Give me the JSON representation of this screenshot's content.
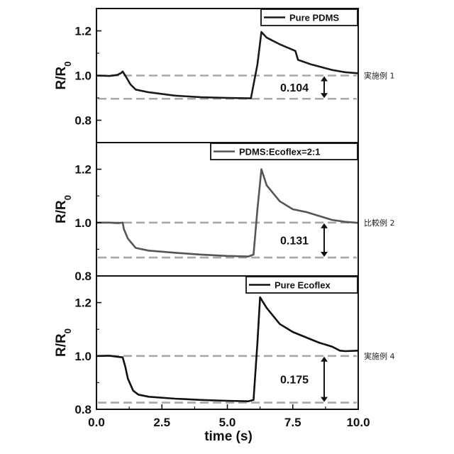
{
  "chart_data": {
    "type": "line",
    "xlabel": "time (s)",
    "xlim": [
      0,
      10
    ],
    "xticks": [
      "0.0",
      "2.5",
      "5.0",
      "7.5",
      "10.0"
    ],
    "panels": [
      {
        "id": "pure-pdms",
        "ylabel": "R/R",
        "ylabel_sub": "0",
        "ylim": [
          0.7,
          1.3
        ],
        "yticks": [
          "0.8",
          "1.0",
          "1.2"
        ],
        "legend": "Pure PDMS",
        "side_label": "実施例 1",
        "annotation": "0.104",
        "dashed_levels": [
          1.0,
          0.896
        ],
        "series": [
          {
            "color": "#1a1a1a",
            "x": [
              0,
              0.5,
              0.8,
              0.95,
              1.0,
              1.1,
              1.3,
              1.5,
              2.0,
              3.0,
              4.0,
              5.0,
              5.9,
              6.15,
              6.3,
              6.5,
              7.0,
              7.4,
              7.6,
              7.7,
              8.2,
              9.0,
              9.5,
              10.0
            ],
            "y": [
              1.0,
              0.998,
              1.003,
              1.012,
              1.018,
              1.0,
              0.96,
              0.937,
              0.925,
              0.91,
              0.903,
              0.9,
              0.898,
              1.05,
              1.195,
              1.17,
              1.14,
              1.12,
              1.11,
              1.07,
              1.05,
              1.025,
              1.015,
              1.01
            ]
          }
        ]
      },
      {
        "id": "pdms-ecoflex",
        "ylabel": "R/R",
        "ylabel_sub": "0",
        "ylim": [
          0.8,
          1.3
        ],
        "yticks": [
          "0.8",
          "1.0",
          "1.2"
        ],
        "legend": "PDMS:Ecoflex=2:1",
        "side_label": "比較例 2",
        "annotation": "0.131",
        "dashed_levels": [
          1.0,
          0.869
        ],
        "series": [
          {
            "color": "#555555",
            "x": [
              0,
              0.5,
              0.8,
              1.0,
              1.05,
              1.2,
              1.5,
              2.0,
              3.0,
              4.0,
              5.0,
              5.8,
              6.0,
              6.15,
              6.3,
              6.5,
              7.0,
              7.5,
              8.0,
              8.5,
              9.0,
              9.5,
              10.0
            ],
            "y": [
              1.0,
              1.0,
              0.998,
              1.0,
              0.975,
              0.94,
              0.905,
              0.895,
              0.887,
              0.88,
              0.875,
              0.873,
              0.88,
              1.05,
              1.2,
              1.14,
              1.08,
              1.05,
              1.04,
              1.025,
              1.01,
              1.003,
              0.999
            ]
          }
        ]
      },
      {
        "id": "pure-ecoflex",
        "ylabel": "R/R",
        "ylabel_sub": "0",
        "ylim": [
          0.8,
          1.3
        ],
        "yticks": [
          "0.8",
          "1.0",
          "1.2"
        ],
        "legend": "Pure Ecoflex",
        "side_label": "実施例 4",
        "annotation": "0.175",
        "dashed_levels": [
          1.0,
          0.825
        ],
        "series": [
          {
            "color": "#111111",
            "x": [
              0,
              0.5,
              0.8,
              1.0,
              1.1,
              1.2,
              1.4,
              1.6,
              2.0,
              3.0,
              4.0,
              5.0,
              5.8,
              6.0,
              6.15,
              6.25,
              6.5,
              7.0,
              7.5,
              8.0,
              8.5,
              9.0,
              9.3,
              9.5,
              10.0
            ],
            "y": [
              1.0,
              1.001,
              0.997,
              0.995,
              0.96,
              0.915,
              0.87,
              0.855,
              0.847,
              0.84,
              0.835,
              0.832,
              0.83,
              0.835,
              1.05,
              1.22,
              1.18,
              1.12,
              1.09,
              1.07,
              1.05,
              1.035,
              1.02,
              1.018,
              1.02
            ]
          }
        ]
      }
    ]
  }
}
